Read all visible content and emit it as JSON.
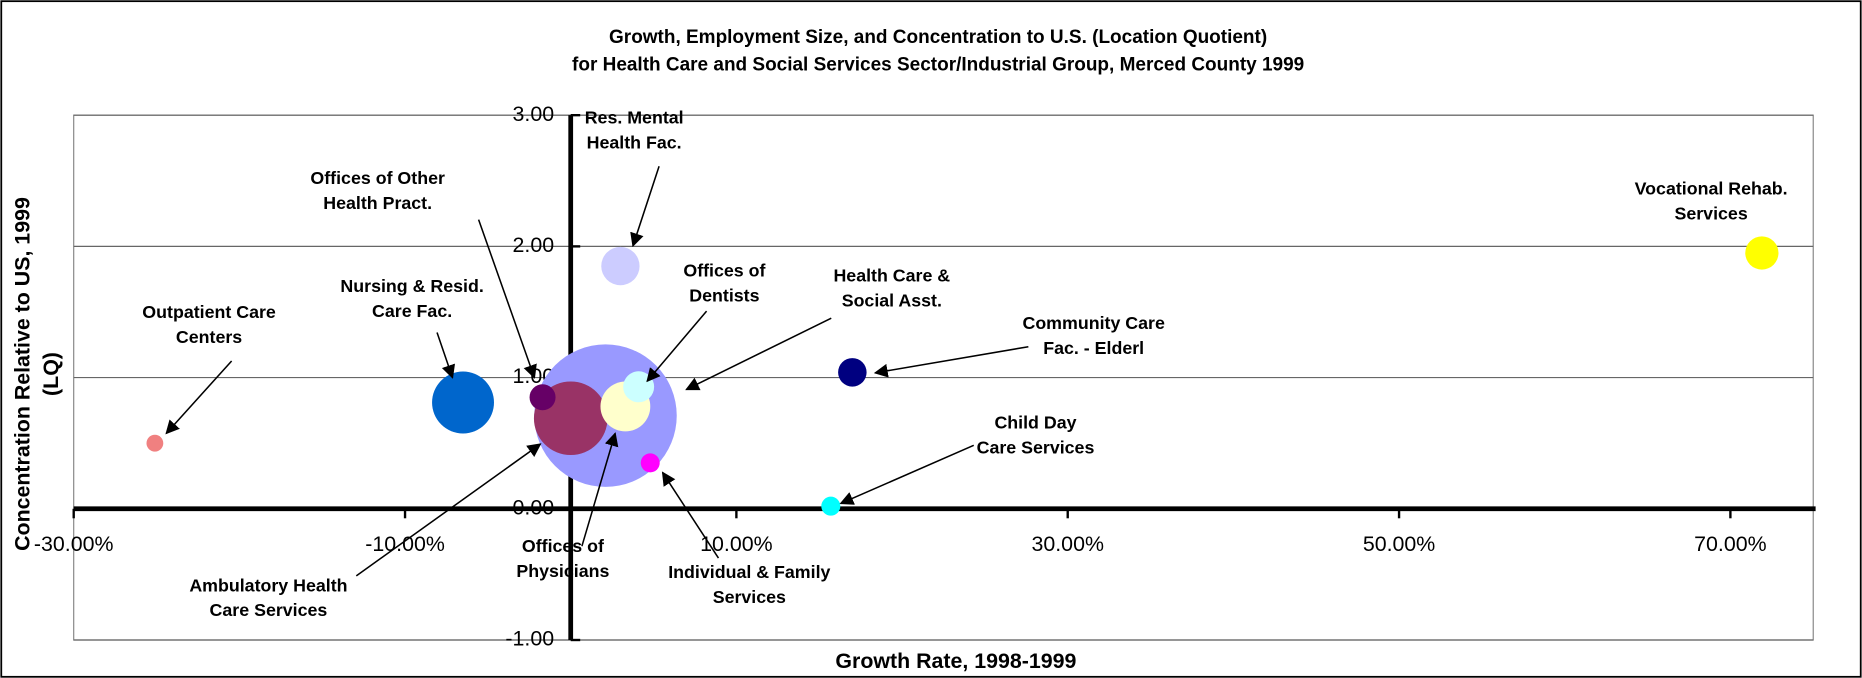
{
  "chart_data": {
    "type": "bubble",
    "title": [
      "Growth, Employment Size, and Concentration to U.S. (Location Quotient)",
      "for Health Care and Social Services Sector/Industrial Group, Merced County 1999"
    ],
    "x_label": "Growth Rate, 1998-1999",
    "y_label": [
      "Concentration Relative to US, 1999",
      "(LQ)"
    ],
    "labels": [
      [
        "Health Care &",
        "Social Asst."
      ],
      [
        "Ambulatory Health",
        "Care Services"
      ],
      [
        "Nursing & Resid.",
        "Care Fac."
      ],
      [
        "Offices of",
        "Physicians"
      ],
      [
        "Offices of",
        "Dentists"
      ],
      [
        "Offices of Other",
        "Health Pract."
      ],
      [
        "Res. Mental",
        "Health Fac."
      ],
      [
        "Outpatient Care",
        "Centers"
      ],
      [
        "Individual & Family",
        "Services"
      ],
      [
        "Child Day",
        "Care Services"
      ],
      [
        "Community Care",
        "Fac. - Elderl"
      ],
      [
        "Vocational Rehab.",
        "Services"
      ]
    ],
    "x": [
      2.1,
      0.0,
      -6.5,
      3.3,
      4.1,
      -1.7,
      3.0,
      -25.1,
      4.8,
      15.7,
      17.0,
      71.9
    ],
    "y": [
      0.71,
      0.69,
      0.81,
      0.78,
      0.93,
      0.85,
      1.85,
      0.5,
      0.35,
      0.02,
      1.04,
      1.95
    ],
    "sizes": [
      3600,
      960,
      680,
      440,
      170,
      120,
      260,
      50,
      64,
      64,
      144,
      196
    ],
    "colors": [
      "#9999ff",
      "#993366",
      "#0066cc",
      "#ffffcc",
      "#ccffff",
      "#660066",
      "#ccccff",
      "#f08080",
      "#ff00ff",
      "#00ffff",
      "#000080",
      "#ffff00"
    ],
    "xlim": [
      -30,
      75
    ],
    "ylim": [
      -1,
      3
    ],
    "xticks": [
      {
        "value": -30,
        "label": "-30.00%"
      },
      {
        "value": -10,
        "label": "-10.00%"
      },
      {
        "value": 10,
        "label": "10.00%"
      },
      {
        "value": 30,
        "label": "30.00%"
      },
      {
        "value": 50,
        "label": "50.00%"
      },
      {
        "value": 70,
        "label": "70.00%"
      }
    ],
    "yticks": [
      {
        "value": -1,
        "label": "-1.00"
      },
      {
        "value": 0,
        "label": "0.00"
      },
      {
        "value": 1,
        "label": "1.00"
      },
      {
        "value": 2,
        "label": "2.00"
      },
      {
        "value": 3,
        "label": "3.00"
      }
    ],
    "grid": true
  }
}
